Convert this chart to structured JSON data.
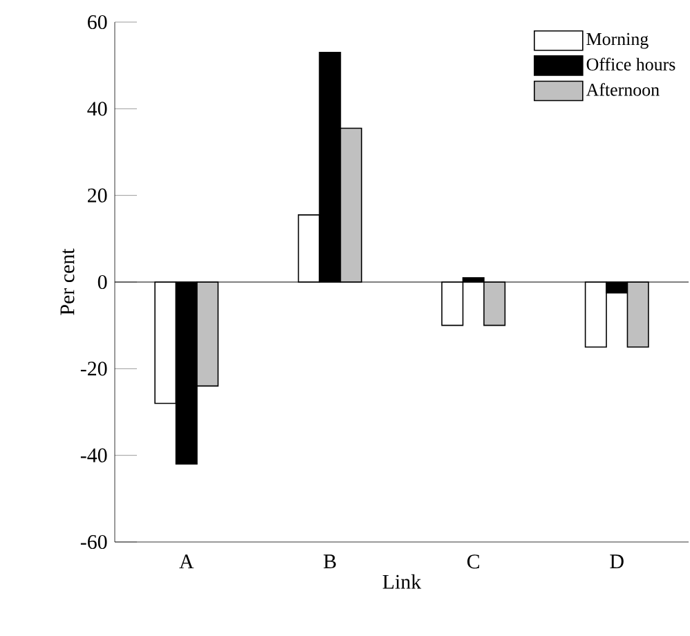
{
  "chart_data": {
    "type": "bar",
    "xlabel": "Link",
    "ylabel": "Per cent",
    "categories": [
      "A",
      "B",
      "C",
      "D"
    ],
    "series": [
      {
        "name": "Morning",
        "color": "#ffffff",
        "values": [
          -28,
          15.5,
          -10,
          -15
        ]
      },
      {
        "name": "Office hours",
        "color": "#000000",
        "values": [
          -42,
          53,
          1,
          -2.5
        ]
      },
      {
        "name": "Afternoon",
        "color": "#c0c0c0",
        "values": [
          -24,
          35.5,
          -10,
          -15
        ]
      }
    ],
    "ylim": [
      -60,
      60
    ],
    "yticks": [
      -60,
      -40,
      -20,
      0,
      20,
      40,
      60
    ],
    "grid": false,
    "legend": "top right",
    "ref_lines": [
      {
        "axis": "y",
        "value": 0
      }
    ]
  }
}
